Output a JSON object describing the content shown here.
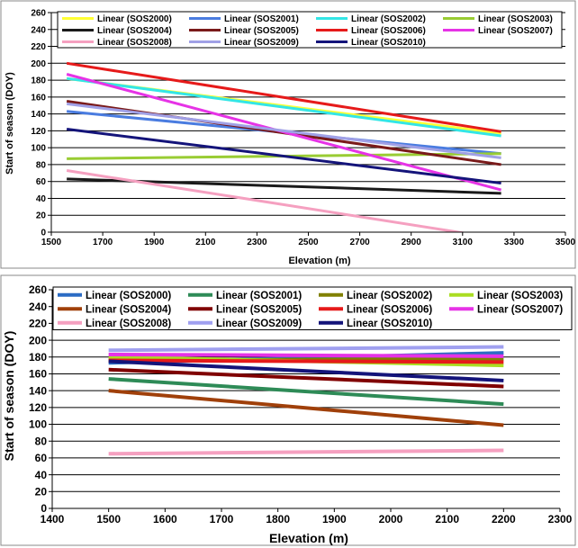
{
  "chart_data": [
    {
      "type": "line",
      "title": "",
      "xlabel": "Elevation (m)",
      "ylabel": "Start of season (DOY)",
      "xlim": [
        1500,
        3500
      ],
      "ylim": [
        0,
        260
      ],
      "xticks": [
        1500,
        1700,
        1900,
        2100,
        2300,
        2500,
        2700,
        2900,
        3100,
        3300,
        3500
      ],
      "yticks": [
        0,
        20,
        40,
        60,
        80,
        100,
        120,
        140,
        160,
        180,
        200,
        220,
        240,
        260
      ],
      "grid": true,
      "legend_position": "top",
      "series": [
        {
          "name": "Linear (SOS2000)",
          "color": "#ffff33",
          "x": [
            1560,
            3250
          ],
          "y": [
            182,
            117
          ]
        },
        {
          "name": "Linear (SOS2001)",
          "color": "#4a7ce0",
          "x": [
            1560,
            3250
          ],
          "y": [
            143,
            93
          ]
        },
        {
          "name": "Linear (SOS2002)",
          "color": "#33e6e6",
          "x": [
            1560,
            3250
          ],
          "y": [
            182,
            114
          ]
        },
        {
          "name": "Linear (SOS2003)",
          "color": "#99cc33",
          "x": [
            1560,
            3250
          ],
          "y": [
            87,
            93
          ]
        },
        {
          "name": "Linear (SOS2004)",
          "color": "#1a1a1a",
          "x": [
            1560,
            3250
          ],
          "y": [
            63,
            46
          ]
        },
        {
          "name": "Linear (SOS2005)",
          "color": "#7a1a1a",
          "x": [
            1560,
            3250
          ],
          "y": [
            155,
            80
          ]
        },
        {
          "name": "Linear (SOS2006)",
          "color": "#e61a1a",
          "x": [
            1560,
            3250
          ],
          "y": [
            200,
            119
          ]
        },
        {
          "name": "Linear (SOS2007)",
          "color": "#e633e6",
          "x": [
            1560,
            3250
          ],
          "y": [
            187,
            50
          ]
        },
        {
          "name": "Linear (SOS2008)",
          "color": "#f5a0c0",
          "x": [
            1560,
            3250
          ],
          "y": [
            73,
            -8
          ]
        },
        {
          "name": "Linear (SOS2009)",
          "color": "#a0a0e6",
          "x": [
            1560,
            3250
          ],
          "y": [
            152,
            88
          ]
        },
        {
          "name": "Linear (SOS2010)",
          "color": "#14147a",
          "x": [
            1560,
            3250
          ],
          "y": [
            122,
            58
          ]
        }
      ]
    },
    {
      "type": "line",
      "title": "",
      "xlabel": "Elevation (m)",
      "ylabel": "Start of season (DOY)",
      "xlim": [
        1400,
        2300
      ],
      "ylim": [
        0,
        260
      ],
      "xticks": [
        1400,
        1500,
        1600,
        1700,
        1800,
        1900,
        2000,
        2100,
        2200,
        2300
      ],
      "yticks": [
        0,
        20,
        40,
        60,
        80,
        100,
        120,
        140,
        160,
        180,
        200,
        220,
        240,
        260
      ],
      "grid": true,
      "legend_position": "top",
      "series": [
        {
          "name": "Linear (SOS2000)",
          "color": "#2b6cc4",
          "x": [
            1500,
            2200
          ],
          "y": [
            173,
            185
          ]
        },
        {
          "name": "Linear (SOS2001)",
          "color": "#2e8b57",
          "x": [
            1500,
            2200
          ],
          "y": [
            154,
            124
          ]
        },
        {
          "name": "Linear (SOS2002)",
          "color": "#808000",
          "x": [
            1500,
            2200
          ],
          "y": [
            176,
            178
          ]
        },
        {
          "name": "Linear (SOS2003)",
          "color": "#aadd22",
          "x": [
            1500,
            2200
          ],
          "y": [
            180,
            170
          ]
        },
        {
          "name": "Linear (SOS2004)",
          "color": "#a0400a",
          "x": [
            1500,
            2200
          ],
          "y": [
            140,
            99
          ]
        },
        {
          "name": "Linear (SOS2005)",
          "color": "#800000",
          "x": [
            1500,
            2200
          ],
          "y": [
            165,
            145
          ]
        },
        {
          "name": "Linear (SOS2006)",
          "color": "#e61a1a",
          "x": [
            1500,
            2200
          ],
          "y": [
            176,
            174
          ]
        },
        {
          "name": "Linear (SOS2007)",
          "color": "#e633e6",
          "x": [
            1500,
            2200
          ],
          "y": [
            183,
            181
          ]
        },
        {
          "name": "Linear (SOS2008)",
          "color": "#f5a0c0",
          "x": [
            1500,
            2200
          ],
          "y": [
            65,
            69
          ]
        },
        {
          "name": "Linear (SOS2009)",
          "color": "#a0a0f0",
          "x": [
            1500,
            2200
          ],
          "y": [
            188,
            192
          ]
        },
        {
          "name": "Linear (SOS2010)",
          "color": "#14147a",
          "x": [
            1500,
            2200
          ],
          "y": [
            175,
            152
          ]
        }
      ]
    }
  ]
}
